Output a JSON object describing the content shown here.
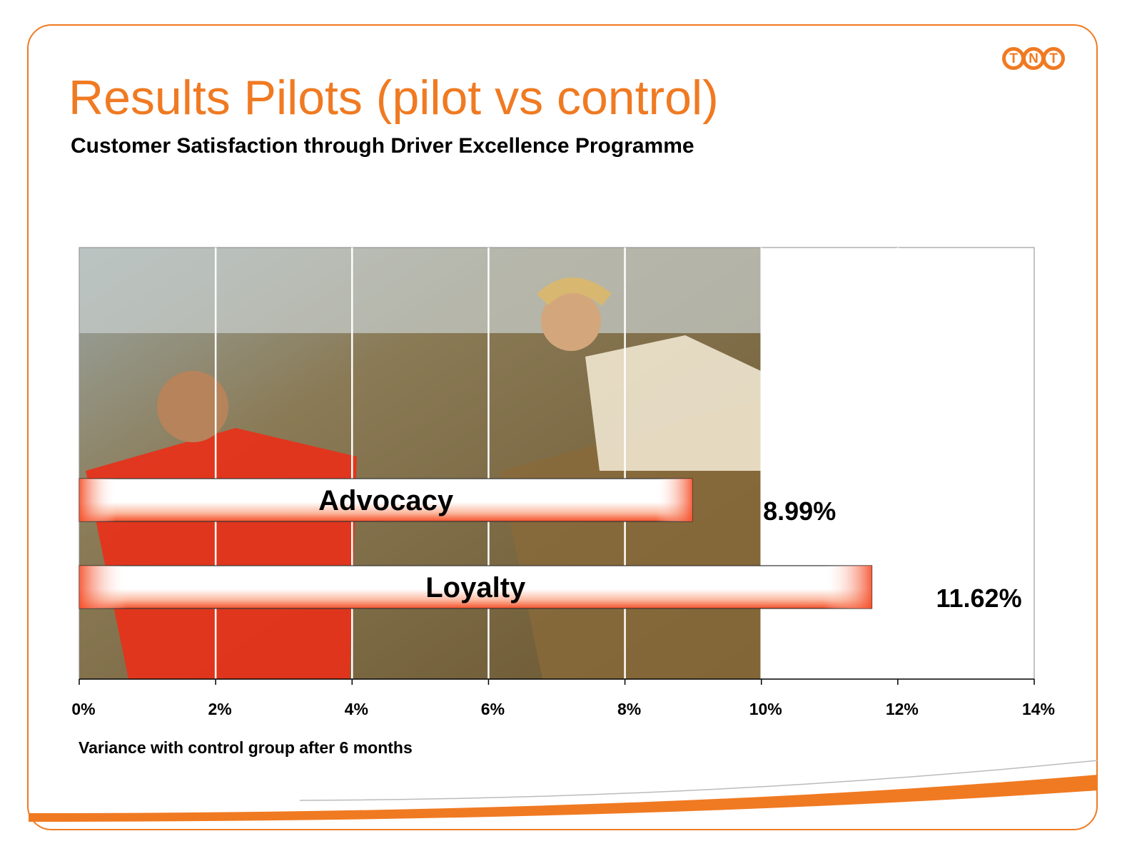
{
  "slide": {
    "title": "Results Pilots (pilot vs control)",
    "subtitle": "Customer Satisfaction through Driver Excellence Programme",
    "logo_letters": [
      "T",
      "N",
      "T"
    ],
    "accent_color": "#f07a22"
  },
  "chart_data": {
    "type": "bar",
    "orientation": "horizontal",
    "categories": [
      "Advocacy",
      "Loyalty"
    ],
    "values": [
      8.99,
      11.62
    ],
    "value_labels": [
      "8.99%",
      "11.62%"
    ],
    "xlabel": "Variance with control group after 6 months",
    "xlim": [
      0,
      14
    ],
    "xticks": [
      0,
      2,
      4,
      6,
      8,
      10,
      12,
      14
    ],
    "xtick_labels": [
      "0%",
      "2%",
      "4%",
      "6%",
      "8%",
      "10%",
      "12%",
      "14%"
    ],
    "grid": true,
    "bar_fill": "red-to-white gradient",
    "background": "photo"
  }
}
